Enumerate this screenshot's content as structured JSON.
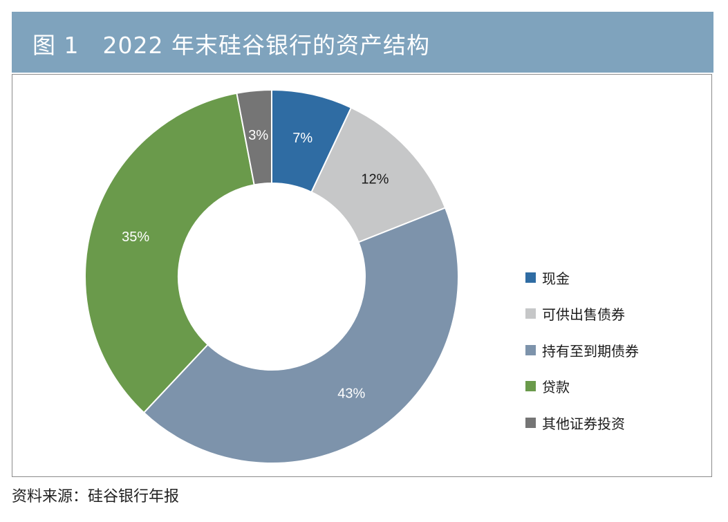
{
  "header": {
    "title": "图 1　2022 年末硅谷银行的资产结构"
  },
  "chart_data": {
    "type": "pie",
    "subtype": "donut",
    "categories": [
      "现金",
      "可供出售债券",
      "持有至到期债券",
      "贷款",
      "其他证券投资"
    ],
    "values": [
      7,
      12,
      43,
      35,
      3
    ],
    "labels": [
      "7%",
      "12%",
      "43%",
      "35%",
      "3%"
    ],
    "colors": [
      "#2f6ca3",
      "#c6c7c8",
      "#7d93ab",
      "#6a9a4b",
      "#757575"
    ],
    "label_colors": [
      "#ffffff",
      "#1a1a1a",
      "#ffffff",
      "#ffffff",
      "#ffffff"
    ],
    "legend_position": "right",
    "start_angle_deg": 0,
    "direction": "clockwise"
  },
  "footer": {
    "source": "资料来源：硅谷银行年报"
  }
}
